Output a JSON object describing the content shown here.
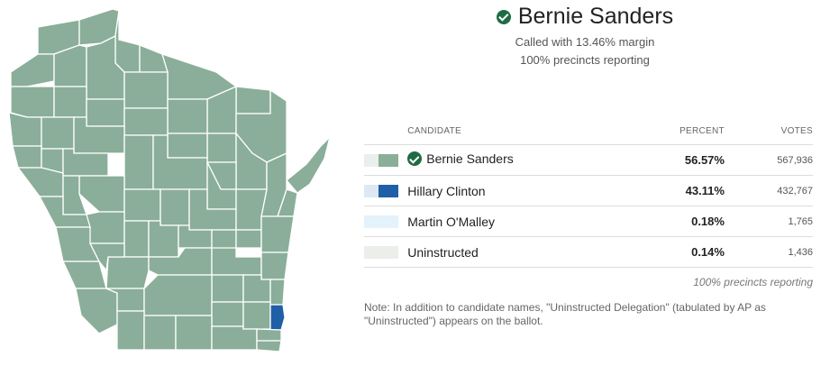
{
  "winner": {
    "name": "Bernie Sanders",
    "margin_text": "Called with 13.46% margin",
    "reporting_text": "100% precincts reporting"
  },
  "table": {
    "headers": {
      "candidate": "CANDIDATE",
      "percent": "PERCENT",
      "votes": "VOTES"
    },
    "rows": [
      {
        "name": "Bernie Sanders",
        "percent": "56.57%",
        "votes": "567,936",
        "winner": true,
        "color_light": "#e9efec",
        "color_dark": "#8aae99"
      },
      {
        "name": "Hillary Clinton",
        "percent": "43.11%",
        "votes": "432,767",
        "winner": false,
        "color_light": "#dde8f4",
        "color_dark": "#1f5fa8"
      },
      {
        "name": "Martin O'Malley",
        "percent": "0.18%",
        "votes": "1,765",
        "winner": false,
        "color_light": "#e3f2fb",
        "color_dark": ""
      },
      {
        "name": "Uninstructed",
        "percent": "0.14%",
        "votes": "1,436",
        "winner": false,
        "color_light": "#eceee9",
        "color_dark": ""
      }
    ],
    "footer": "100% precincts reporting"
  },
  "note": "Note: In addition to candidate names, \"Uninstructed Delegation\" (tabulated by AP as \"Uninstructed\") appears on the ballot.",
  "colors": {
    "sanders": "#8aae99",
    "clinton": "#1f5fa8",
    "check": "#1f6b45"
  }
}
